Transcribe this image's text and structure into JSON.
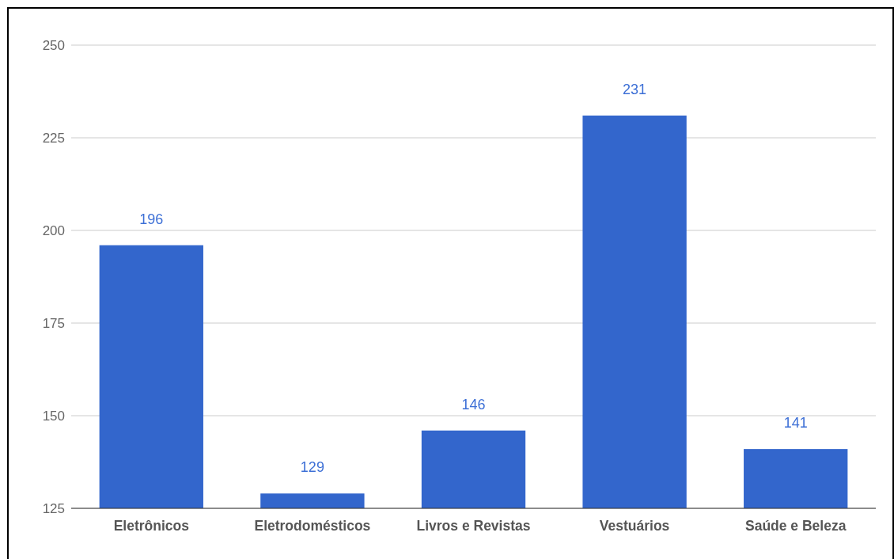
{
  "chart_data": {
    "type": "bar",
    "categories": [
      "Eletrônicos",
      "Eletrodomésticos",
      "Livros e Revistas",
      "Vestuários",
      "Saúde e Beleza"
    ],
    "values": [
      196,
      129,
      146,
      231,
      141
    ],
    "color": "#3366cc",
    "ylim": [
      125,
      250
    ],
    "yticks": [
      125,
      150,
      175,
      200,
      225,
      250
    ],
    "grid": "y",
    "data_labels": true
  }
}
